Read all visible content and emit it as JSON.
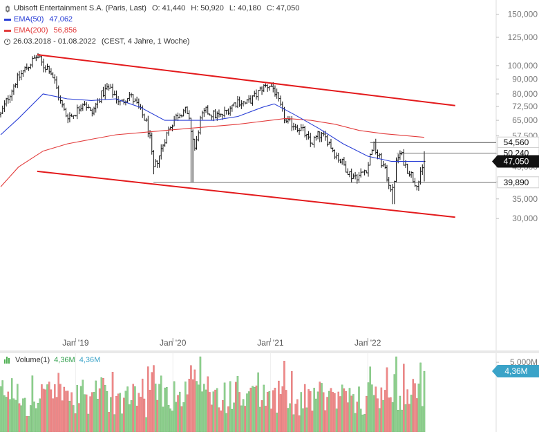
{
  "legend": {
    "symbol": "Ubisoft Entertainment S.A. (Paris, Last)",
    "open_label": "O:",
    "open": "41,440",
    "high_label": "H:",
    "high": "50,920",
    "low_label": "L:",
    "low": "40,180",
    "close_label": "C:",
    "close": "47,050",
    "ema50_label": "EMA(50)",
    "ema50_value": "47,062",
    "ema200_label": "EMA(200)",
    "ema200_value": "56,856",
    "range": "26.03.2018 - 01.08.2022",
    "range_note": "(CEST, 4 Jahre, 1 Woche)"
  },
  "volume_legend": {
    "label": "Volume(1)",
    "value1": "4,36M",
    "value2": "4,36M"
  },
  "colors": {
    "ema50": "#2a3fd6",
    "ema200": "#e23b3b",
    "channel": "#e31a1c",
    "vol_up": "#8fd18f",
    "vol_down": "#f08a8a",
    "price": "#111111",
    "vol_tag": "#3aa3c8"
  },
  "chart_data": {
    "type": "candlestick",
    "title": "Ubisoft Entertainment S.A. (Paris, Last)",
    "y_scale": "log",
    "ylim": [
      28,
      150
    ],
    "y_ticks": [
      150000,
      125000,
      100000,
      90000,
      80000,
      72500,
      65000,
      57500,
      50000,
      45000,
      40000,
      35000,
      30000
    ],
    "y_tick_labels": [
      "150,000",
      "125,000",
      "100,000",
      "90,000",
      "80,000",
      "72,500",
      "65,000",
      "57,500",
      "50,000",
      "45,000",
      "40,000",
      "35,000",
      "30,000"
    ],
    "x_ticks": [
      "Jan '19",
      "Jan '20",
      "Jan '21",
      "Jan '22"
    ],
    "x_range": [
      "26.03.2018",
      "01.08.2022"
    ],
    "close_path": [
      {
        "date": "2018-03-26",
        "value": 68
      },
      {
        "date": "2018-04-20",
        "value": 77
      },
      {
        "date": "2018-05-20",
        "value": 88
      },
      {
        "date": "2018-06-20",
        "value": 96
      },
      {
        "date": "2018-07-20",
        "value": 103
      },
      {
        "date": "2018-08-10",
        "value": 108
      },
      {
        "date": "2018-09-01",
        "value": 100
      },
      {
        "date": "2018-09-25",
        "value": 98
      },
      {
        "date": "2018-10-15",
        "value": 88
      },
      {
        "date": "2018-11-05",
        "value": 75
      },
      {
        "date": "2018-11-25",
        "value": 68
      },
      {
        "date": "2018-12-15",
        "value": 67
      },
      {
        "date": "2019-01-05",
        "value": 70
      },
      {
        "date": "2019-02-01",
        "value": 76
      },
      {
        "date": "2019-03-01",
        "value": 68
      },
      {
        "date": "2019-04-01",
        "value": 78
      },
      {
        "date": "2019-05-01",
        "value": 84
      },
      {
        "date": "2019-05-25",
        "value": 80
      },
      {
        "date": "2019-06-20",
        "value": 74
      },
      {
        "date": "2019-07-20",
        "value": 80
      },
      {
        "date": "2019-08-20",
        "value": 73
      },
      {
        "date": "2019-09-20",
        "value": 65
      },
      {
        "date": "2019-10-05",
        "value": 58
      },
      {
        "date": "2019-10-20",
        "value": 44
      },
      {
        "date": "2019-11-10",
        "value": 49
      },
      {
        "date": "2019-12-01",
        "value": 56
      },
      {
        "date": "2019-12-25",
        "value": 63
      },
      {
        "date": "2020-01-20",
        "value": 68
      },
      {
        "date": "2020-02-15",
        "value": 71
      },
      {
        "date": "2020-03-05",
        "value": 63
      },
      {
        "date": "2020-03-25",
        "value": 51
      },
      {
        "date": "2020-04-10",
        "value": 64
      },
      {
        "date": "2020-05-01",
        "value": 70
      },
      {
        "date": "2020-06-01",
        "value": 68
      },
      {
        "date": "2020-07-01",
        "value": 67
      },
      {
        "date": "2020-08-01",
        "value": 72
      },
      {
        "date": "2020-09-01",
        "value": 76
      },
      {
        "date": "2020-10-01",
        "value": 74
      },
      {
        "date": "2020-11-01",
        "value": 78
      },
      {
        "date": "2020-12-01",
        "value": 84
      },
      {
        "date": "2020-12-28",
        "value": 86
      },
      {
        "date": "2021-01-15",
        "value": 83
      },
      {
        "date": "2021-02-05",
        "value": 73
      },
      {
        "date": "2021-03-01",
        "value": 64
      },
      {
        "date": "2021-04-01",
        "value": 63
      },
      {
        "date": "2021-05-01",
        "value": 60
      },
      {
        "date": "2021-06-01",
        "value": 54
      },
      {
        "date": "2021-07-01",
        "value": 58
      },
      {
        "date": "2021-08-01",
        "value": 56
      },
      {
        "date": "2021-09-01",
        "value": 50
      },
      {
        "date": "2021-10-01",
        "value": 46
      },
      {
        "date": "2021-11-01",
        "value": 42
      },
      {
        "date": "2021-12-01",
        "value": 42
      },
      {
        "date": "2022-01-01",
        "value": 45
      },
      {
        "date": "2022-01-20",
        "value": 54
      },
      {
        "date": "2022-02-05",
        "value": 50
      },
      {
        "date": "2022-03-01",
        "value": 45
      },
      {
        "date": "2022-03-20",
        "value": 40
      },
      {
        "date": "2022-04-05",
        "value": 37
      },
      {
        "date": "2022-04-20",
        "value": 48
      },
      {
        "date": "2022-05-05",
        "value": 50
      },
      {
        "date": "2022-05-25",
        "value": 45
      },
      {
        "date": "2022-06-10",
        "value": 43
      },
      {
        "date": "2022-06-25",
        "value": 40
      },
      {
        "date": "2022-07-10",
        "value": 40
      },
      {
        "date": "2022-07-25",
        "value": 44
      },
      {
        "date": "2022-08-01",
        "value": 47
      }
    ],
    "ema50_path": [
      {
        "date": "2018-03-26",
        "value": 58
      },
      {
        "date": "2018-06-01",
        "value": 66
      },
      {
        "date": "2018-09-01",
        "value": 80
      },
      {
        "date": "2018-12-01",
        "value": 77
      },
      {
        "date": "2019-03-01",
        "value": 76
      },
      {
        "date": "2019-06-01",
        "value": 77
      },
      {
        "date": "2019-09-01",
        "value": 72
      },
      {
        "date": "2019-12-01",
        "value": 65
      },
      {
        "date": "2020-03-01",
        "value": 65
      },
      {
        "date": "2020-06-01",
        "value": 65
      },
      {
        "date": "2020-09-01",
        "value": 67
      },
      {
        "date": "2020-12-01",
        "value": 72
      },
      {
        "date": "2021-01-15",
        "value": 74
      },
      {
        "date": "2021-04-01",
        "value": 68
      },
      {
        "date": "2021-07-01",
        "value": 61
      },
      {
        "date": "2021-10-01",
        "value": 54
      },
      {
        "date": "2022-01-01",
        "value": 49
      },
      {
        "date": "2022-04-01",
        "value": 47
      },
      {
        "date": "2022-08-01",
        "value": 47.06
      }
    ],
    "ema200_path": [
      {
        "date": "2018-03-26",
        "value": 38.5
      },
      {
        "date": "2018-06-01",
        "value": 45
      },
      {
        "date": "2018-09-01",
        "value": 51
      },
      {
        "date": "2018-12-01",
        "value": 54
      },
      {
        "date": "2019-03-01",
        "value": 56
      },
      {
        "date": "2019-06-01",
        "value": 58
      },
      {
        "date": "2019-09-01",
        "value": 59
      },
      {
        "date": "2019-12-01",
        "value": 60
      },
      {
        "date": "2020-03-01",
        "value": 61
      },
      {
        "date": "2020-06-01",
        "value": 62
      },
      {
        "date": "2020-09-01",
        "value": 63
      },
      {
        "date": "2020-12-01",
        "value": 64.5
      },
      {
        "date": "2021-03-01",
        "value": 66
      },
      {
        "date": "2021-06-01",
        "value": 65
      },
      {
        "date": "2021-09-01",
        "value": 63
      },
      {
        "date": "2021-12-01",
        "value": 60
      },
      {
        "date": "2022-03-01",
        "value": 58.5
      },
      {
        "date": "2022-06-01",
        "value": 57.5
      },
      {
        "date": "2022-08-01",
        "value": 56.86
      }
    ],
    "channel_upper": [
      {
        "date": "2018-08-10",
        "value": 109
      },
      {
        "date": "2022-11-25",
        "value": 73
      }
    ],
    "channel_lower": [
      {
        "date": "2018-08-10",
        "value": 43.5
      },
      {
        "date": "2022-11-25",
        "value": 30.3
      }
    ],
    "horizontal_levels": [
      {
        "label": "54,560",
        "value": 54.56,
        "from": "2022-01-10"
      },
      {
        "label": "50,240",
        "value": 50.24,
        "from": "2022-04-20"
      },
      {
        "label": "39,890",
        "value": 39.89,
        "from": "2019-10-20"
      }
    ],
    "last_price": {
      "label": "47,050",
      "value": 47.05
    },
    "volume": {
      "y_tick_label": "5,000M",
      "ylim_millions": [
        0,
        5.6
      ],
      "last_label": "4,36M",
      "last_value_millions": 4.36
    }
  }
}
